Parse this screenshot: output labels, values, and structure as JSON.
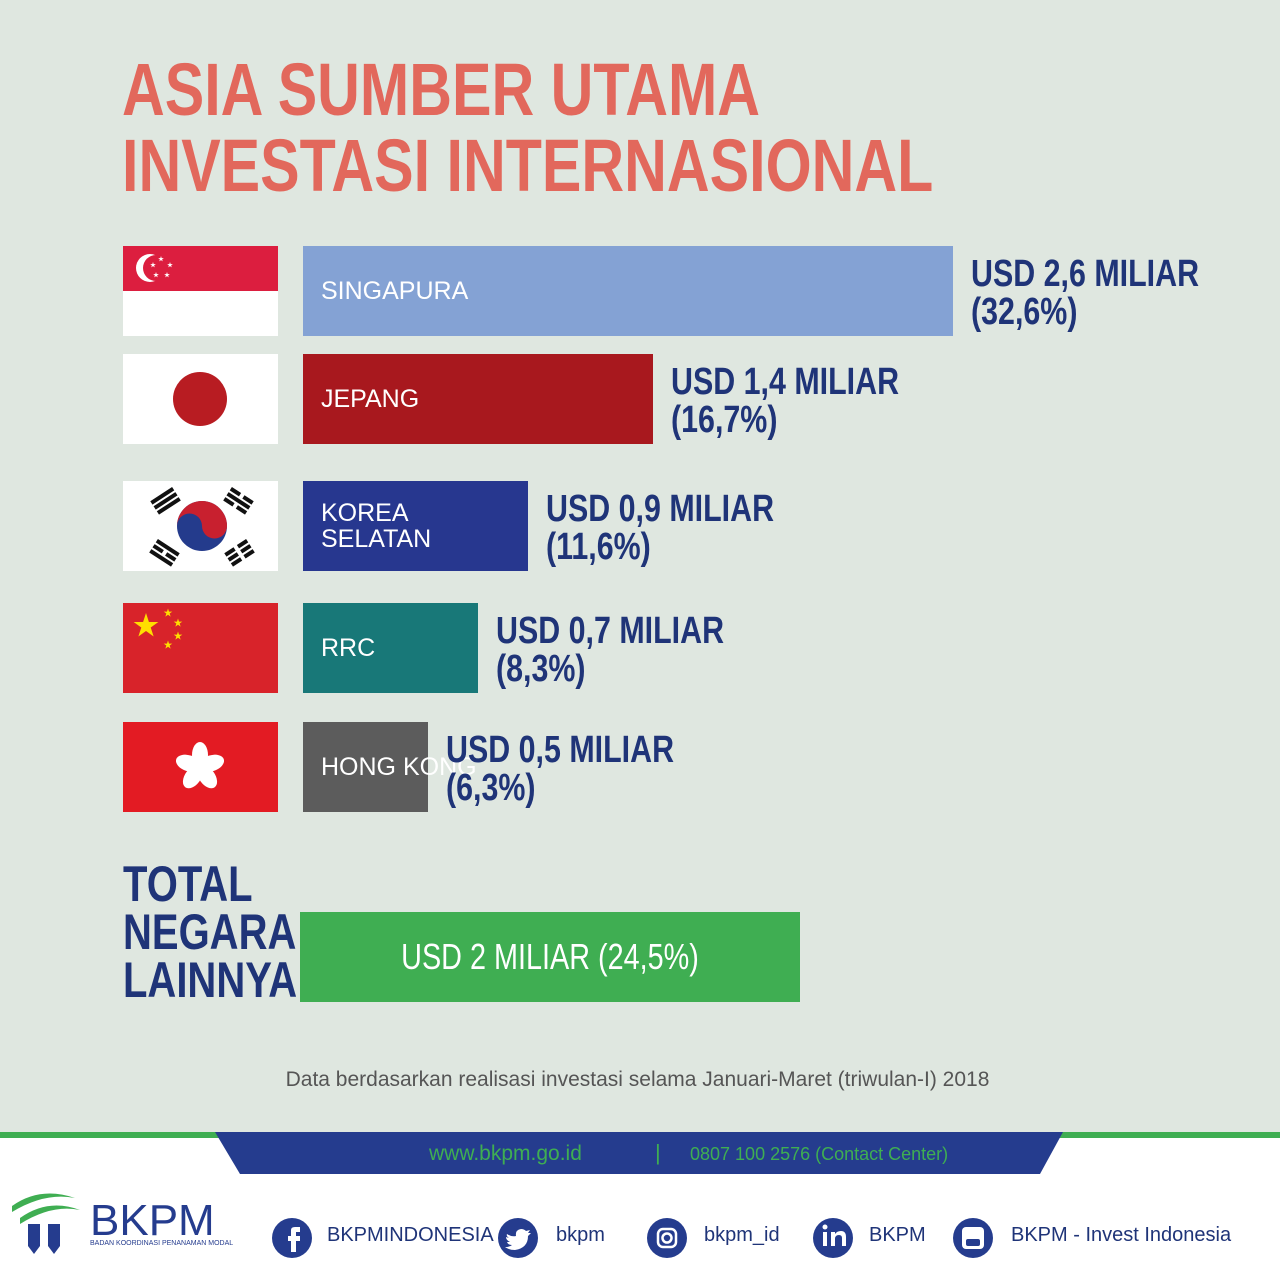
{
  "title": "ASIA SUMBER UTAMA\nINVESTASI INTERNASIONAL",
  "chart_data": [
    {
      "type": "bar",
      "orientation": "horizontal",
      "categories": [
        "SINGAPURA",
        "JEPANG",
        "KOREA\nSELATAN",
        "RRC",
        "HONG KONG"
      ],
      "values": [
        2.6,
        1.4,
        0.9,
        0.7,
        0.5
      ],
      "value_labels": [
        "USD 2,6 MILIAR",
        "USD 1,4 MILIAR",
        "USD 0,9 MILIAR",
        "USD 0,7 MILIAR",
        "USD 0,5 MILIAR"
      ],
      "shares": [
        32.6,
        16.7,
        11.6,
        8.3,
        6.3
      ],
      "share_labels": [
        "(32,6%)",
        "(16,7%)",
        "(11,6%)",
        "(8,3%)",
        "(6,3%)"
      ],
      "colors": [
        "#84a2d4",
        "#a8181e",
        "#27378f",
        "#187878",
        "#5c5c5c"
      ],
      "label_position": "outside"
    },
    {
      "type": "bar",
      "orientation": "horizontal",
      "categories": [
        "TOTAL\nNEGARA\nLAINNYA"
      ],
      "values": [
        2
      ],
      "value_labels": [
        "USD 2 MILIAR (24,5%)"
      ],
      "colors": [
        "#3fae52"
      ],
      "label_position": "inside"
    }
  ],
  "note": "Data berdasarkan realisasi investasi selama Januari-Maret (triwulan-I) 2018",
  "footer": {
    "website": "www.bkpm.go.id",
    "separator": "|",
    "phone": "0807 100 2576 (Contact Center)",
    "logo": "BKPM",
    "logo_subtitle": "BADAN KOORDINASI PENANAMAN MODAL",
    "social": [
      "BKPMINDONESIA",
      "bkpm",
      "bkpm_id",
      "BKPM",
      "BKPM - Invest Indonesia"
    ]
  }
}
